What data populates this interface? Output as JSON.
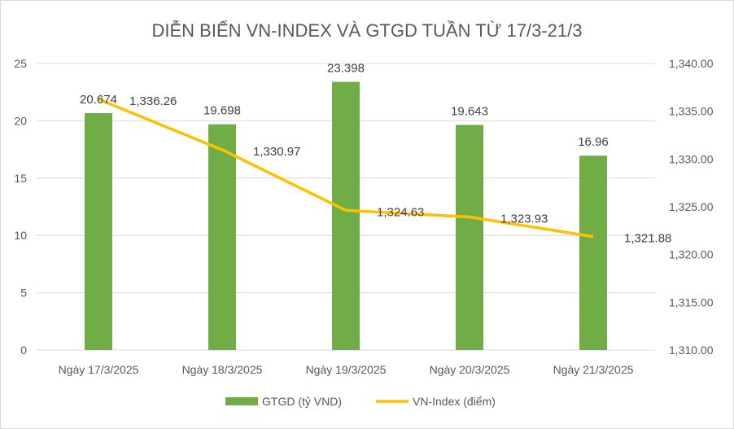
{
  "chart_data": {
    "type": "bar+line",
    "title": "DIỄN BIẾN VN-INDEX VÀ GTGD TUẦN TỪ 17/3-21/3",
    "categories": [
      "Ngày 17/3/2025",
      "Ngày 18/3/2025",
      "Ngày 19/3/2025",
      "Ngày 20/3/2025",
      "Ngày 21/3/2025"
    ],
    "series": [
      {
        "name": "GTGD (tỷ VND)",
        "type": "bar",
        "axis": "left",
        "color": "#70AD47",
        "values": [
          20.674,
          19.698,
          23.398,
          19.643,
          16.96
        ],
        "labels": [
          "20.674",
          "19.698",
          "23.398",
          "19.643",
          "16.96"
        ]
      },
      {
        "name": "VN-Index (điểm)",
        "type": "line",
        "axis": "right",
        "color": "#FFC000",
        "values": [
          1336.26,
          1330.97,
          1324.63,
          1323.93,
          1321.88
        ],
        "labels": [
          "1,336.26",
          "1,330.97",
          "1,324.63",
          "1,323.93",
          "1,321.88"
        ]
      }
    ],
    "y_left": {
      "range": [
        0,
        25
      ],
      "ticks": [
        0,
        5,
        10,
        15,
        20,
        25
      ],
      "tick_labels": [
        "0",
        "5",
        "10",
        "15",
        "20",
        "25"
      ]
    },
    "y_right": {
      "range": [
        1310,
        1340
      ],
      "ticks": [
        1310,
        1315,
        1320,
        1325,
        1330,
        1335,
        1340
      ],
      "tick_labels": [
        "1,310.00",
        "1,315.00",
        "1,320.00",
        "1,325.00",
        "1,330.00",
        "1,335.00",
        "1,340.00"
      ]
    },
    "grid": true,
    "legend_position": "bottom"
  }
}
